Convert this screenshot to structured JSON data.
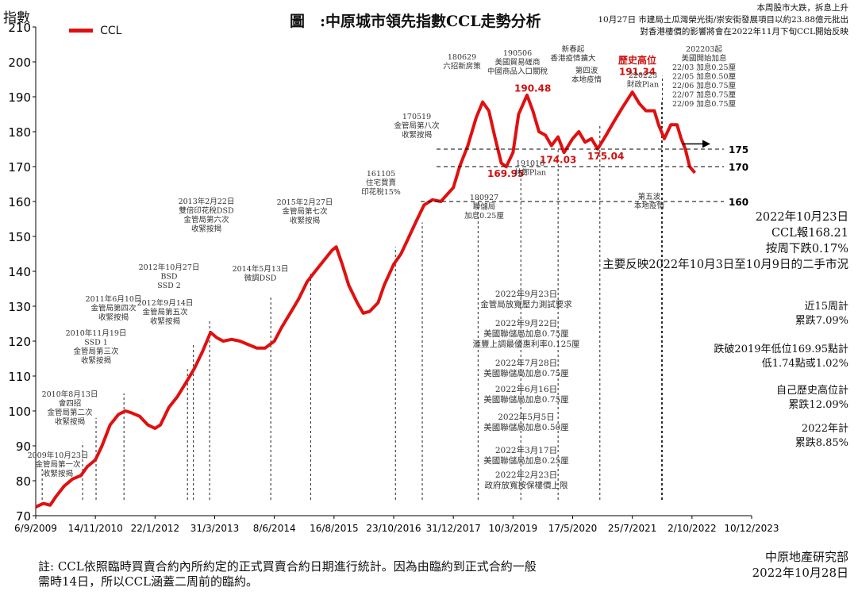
{
  "title": "圖　:中原城市領先指數CCL走勢分析",
  "header_note": {
    "line1": "本周股市大跌，拆息上升",
    "line2": "10月27日 市建局土瓜灣榮光街/崇安街發展項目以約23.88億元批出",
    "line3": "對香港樓價的影響將會在2022年11月下旬CCL開始反映"
  },
  "legend": {
    "label": "CCL",
    "color": "#e01010"
  },
  "y_axis_label": "指數",
  "summary": {
    "date": "2022年10月23日",
    "value": "CCL報168.21",
    "change": "按周下跌0.17%",
    "note": "主要反映2022年10月3日至10月9日的二手市況"
  },
  "stats": [
    {
      "l1": "近15周計",
      "l2": "累跌7.09%"
    },
    {
      "l1": "跌破2019年低位169.95點計",
      "l2": "低1.74點或1.02%"
    },
    {
      "l1": "自己歷史高位計",
      "l2": "累跌12.09%"
    },
    {
      "l1": "2022年計",
      "l2": "累跌8.85%"
    }
  ],
  "footnote": {
    "line1": "註: CCL依照臨時買賣合約內所約定的正式買賣合約日期進行統計。因為由臨約到正式合約一般",
    "line2": "需時14日，所以CCL涵蓋二周前的臨約。"
  },
  "source": {
    "org": "中原地產研究部",
    "date": "2022年10月28日"
  },
  "ref_lines": [
    {
      "value": 175,
      "label": "175"
    },
    {
      "value": 170,
      "label": "170"
    },
    {
      "value": 160,
      "label": "160"
    }
  ],
  "peak_label": {
    "title": "歷史高位",
    "value": "191.34"
  },
  "point_labels": [
    "190.48",
    "169.95",
    "174.03",
    "175.04"
  ],
  "events": [
    {
      "date": "2009-10-23",
      "lines": [
        "2009年10月23日",
        "金管局第一次",
        "收緊按揭"
      ]
    },
    {
      "date": "2010-08-13",
      "lines": [
        "2010年8月13日",
        "會四招",
        "金管局第二次",
        "收緊按揭"
      ]
    },
    {
      "date": "2010-11-19",
      "lines": [
        "2010年11月19日",
        "SSD 1",
        "金管局第三次",
        "收緊按揭"
      ]
    },
    {
      "date": "2011-06-10",
      "lines": [
        "2011年6月10日",
        "金管局第四次",
        "收緊按揭"
      ]
    },
    {
      "date": "2012-09-14",
      "lines": [
        "2012年9月14日",
        "金管局第五次",
        "收緊按揭"
      ]
    },
    {
      "date": "2012-10-27",
      "lines": [
        "2012年10月27日",
        "BSD",
        "SSD 2"
      ]
    },
    {
      "date": "2013-02-22",
      "lines": [
        "2013年2月22日",
        "雙倍印花稅DSD",
        "金管局第六次",
        "收緊按揭"
      ]
    },
    {
      "date": "2014-05-13",
      "lines": [
        "2014年5月13日",
        "微調DSD"
      ]
    },
    {
      "date": "2015-02-27",
      "lines": [
        "2015年2月27日",
        "金管局第七次",
        "收緊按揭"
      ]
    },
    {
      "date": "2016-11-05",
      "lines": [
        "161105",
        "住宅買賣",
        "印花稅15%"
      ]
    },
    {
      "date": "2017-05-19",
      "lines": [
        "170519",
        "金管局第八次",
        "收緊按揭"
      ]
    },
    {
      "date": "2018-06-29",
      "lines": [
        "180629",
        "六招新房策"
      ]
    },
    {
      "date": "2019-05-06",
      "lines": [
        "190506",
        "美國貿易磋商",
        "中國商品入口關稅"
      ]
    },
    {
      "date": "2020-02-01",
      "lines": [
        "新春起",
        "香港疫情擴大"
      ]
    },
    {
      "date": "2020-12-01",
      "lines": [
        "第四波",
        "本地疫情"
      ]
    },
    {
      "date": "2022-02-23",
      "lines": [
        "220223",
        "財政Plan"
      ]
    },
    {
      "date": "2022-03-01",
      "lines": [
        "202203起",
        "美國開始加息",
        "22/03  加息0.25厘",
        "22/05  加息0.50厘",
        "22/06  加息0.75厘",
        "22/07  加息0.75厘",
        "22/09  加息0.75厘"
      ]
    }
  ],
  "events_below": [
    {
      "lines": [
        "180927",
        "聯儲局",
        "加息0.25厘"
      ]
    },
    {
      "lines": [
        "191016",
        "林鄭Plan"
      ]
    },
    {
      "lines": [
        "第五波",
        "本地疫情"
      ]
    }
  ],
  "timeline_2022": [
    {
      "l1": "2022年9月23日",
      "l2": "金管局放寬壓力測試要求"
    },
    {
      "l1": "2022年9月22日",
      "l2": "美國聯儲局加息0.75厘",
      "l3": "滙豐上調最優惠利率0.125厘"
    },
    {
      "l1": "2022年7月28日",
      "l2": "美國聯儲局加息0.75厘"
    },
    {
      "l1": "2022年6月16日",
      "l2": "美國聯儲局加息0.75厘"
    },
    {
      "l1": "2022年5月5日",
      "l2": "美國聯儲局加息0.50厘"
    },
    {
      "l1": "2022年3月17日",
      "l2": "美國聯儲局加息0.25厘"
    },
    {
      "l1": "2022年2月23日",
      "l2": "政府放寬按保樓價上限"
    }
  ],
  "chart_data": {
    "type": "line",
    "title": "圖　:中原城市領先指數CCL走勢分析",
    "ylabel": "指數",
    "ylim": [
      70,
      210
    ],
    "yticks": [
      70,
      80,
      90,
      100,
      110,
      120,
      130,
      140,
      150,
      160,
      170,
      180,
      190,
      200,
      210
    ],
    "xticks": [
      "6/9/2009",
      "14/11/2010",
      "22/1/2012",
      "31/3/2013",
      "8/6/2014",
      "16/8/2015",
      "23/10/2016",
      "31/12/2017",
      "10/3/2019",
      "17/5/2020",
      "25/7/2021",
      "2/10/2022",
      "10/12/2023"
    ],
    "xtick_dates": [
      "2009-09-06",
      "2010-11-14",
      "2012-01-22",
      "2013-03-31",
      "2014-06-08",
      "2015-08-16",
      "2016-10-23",
      "2017-12-31",
      "2019-03-10",
      "2020-05-17",
      "2021-07-25",
      "2022-10-02",
      "2023-12-10"
    ],
    "legend_position": "top-left",
    "series": [
      {
        "name": "CCL",
        "color": "#e01010",
        "points": [
          [
            "2009-09-06",
            72.5
          ],
          [
            "2009-11-01",
            73.5
          ],
          [
            "2009-12-20",
            73.0
          ],
          [
            "2010-02-01",
            75.5
          ],
          [
            "2010-04-01",
            78.5
          ],
          [
            "2010-06-01",
            80.5
          ],
          [
            "2010-08-01",
            81.5
          ],
          [
            "2010-09-15",
            84.0
          ],
          [
            "2010-11-14",
            86.0
          ],
          [
            "2011-01-01",
            90.0
          ],
          [
            "2011-03-01",
            96.0
          ],
          [
            "2011-05-01",
            99.0
          ],
          [
            "2011-06-20",
            100.0
          ],
          [
            "2011-08-01",
            99.5
          ],
          [
            "2011-10-01",
            98.5
          ],
          [
            "2011-12-01",
            96.0
          ],
          [
            "2012-01-22",
            95.0
          ],
          [
            "2012-03-01",
            96.0
          ],
          [
            "2012-05-01",
            101.0
          ],
          [
            "2012-07-01",
            104.0
          ],
          [
            "2012-09-01",
            108.0
          ],
          [
            "2012-11-01",
            112.0
          ],
          [
            "2013-01-01",
            117.0
          ],
          [
            "2013-03-01",
            122.5
          ],
          [
            "2013-04-15",
            121.0
          ],
          [
            "2013-06-01",
            120.0
          ],
          [
            "2013-08-01",
            120.5
          ],
          [
            "2013-10-01",
            120.0
          ],
          [
            "2013-12-01",
            119.0
          ],
          [
            "2014-02-01",
            118.0
          ],
          [
            "2014-04-01",
            118.0
          ],
          [
            "2014-06-08",
            120.0
          ],
          [
            "2014-08-01",
            124.0
          ],
          [
            "2014-10-01",
            128.0
          ],
          [
            "2014-12-01",
            132.0
          ],
          [
            "2015-02-01",
            137.0
          ],
          [
            "2015-04-01",
            140.0
          ],
          [
            "2015-06-01",
            143.0
          ],
          [
            "2015-08-01",
            146.0
          ],
          [
            "2015-09-01",
            147.0
          ],
          [
            "2015-10-15",
            142.0
          ],
          [
            "2015-12-01",
            136.0
          ],
          [
            "2016-02-01",
            131.0
          ],
          [
            "2016-03-15",
            128.0
          ],
          [
            "2016-05-01",
            128.5
          ],
          [
            "2016-07-01",
            131.0
          ],
          [
            "2016-08-15",
            136.0
          ],
          [
            "2016-10-23",
            142.0
          ],
          [
            "2016-12-15",
            145.0
          ],
          [
            "2017-02-01",
            149.0
          ],
          [
            "2017-04-01",
            154.0
          ],
          [
            "2017-06-01",
            159.0
          ],
          [
            "2017-08-01",
            160.5
          ],
          [
            "2017-10-01",
            160.0
          ],
          [
            "2017-12-31",
            164.0
          ],
          [
            "2018-02-15",
            170.0
          ],
          [
            "2018-04-15",
            176.0
          ],
          [
            "2018-06-15",
            184.0
          ],
          [
            "2018-08-01",
            188.5
          ],
          [
            "2018-09-15",
            186.0
          ],
          [
            "2018-11-01",
            178.0
          ],
          [
            "2018-12-15",
            171.0
          ],
          [
            "2019-01-20",
            169.95
          ],
          [
            "2019-03-10",
            174.0
          ],
          [
            "2019-04-20",
            185.0
          ],
          [
            "2019-06-20",
            190.48
          ],
          [
            "2019-08-01",
            186.0
          ],
          [
            "2019-09-15",
            180.0
          ],
          [
            "2019-11-01",
            179.0
          ],
          [
            "2019-12-15",
            176.0
          ],
          [
            "2020-02-01",
            178.5
          ],
          [
            "2020-03-15",
            174.03
          ],
          [
            "2020-05-17",
            178.0
          ],
          [
            "2020-07-01",
            180.0
          ],
          [
            "2020-08-15",
            177.0
          ],
          [
            "2020-10-01",
            178.0
          ],
          [
            "2020-11-15",
            175.04
          ],
          [
            "2021-01-15",
            179.0
          ],
          [
            "2021-03-15",
            183.0
          ],
          [
            "2021-05-15",
            187.0
          ],
          [
            "2021-07-25",
            191.34
          ],
          [
            "2021-09-15",
            188.0
          ],
          [
            "2021-11-01",
            186.0
          ],
          [
            "2022-01-01",
            186.0
          ],
          [
            "2022-02-01",
            182.0
          ],
          [
            "2022-03-15",
            178.0
          ],
          [
            "2022-05-01",
            182.0
          ],
          [
            "2022-06-15",
            182.0
          ],
          [
            "2022-07-15",
            178.0
          ],
          [
            "2022-08-15",
            175.0
          ],
          [
            "2022-09-15",
            170.0
          ],
          [
            "2022-10-23",
            168.21
          ]
        ]
      }
    ]
  }
}
